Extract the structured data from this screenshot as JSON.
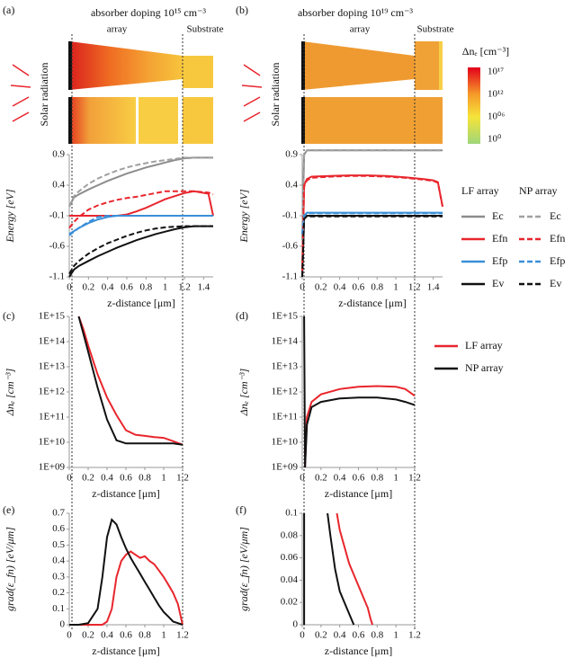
{
  "colormaps": [
    {
      "title": "absorber doping 10¹⁵ cm⁻³",
      "array_label": "array",
      "substrate_label": "Substrate",
      "side_label": "Solar radiation"
    },
    {
      "title": "absorber doping 10¹⁹ cm⁻³",
      "array_label": "array",
      "substrate_label": "Substrate",
      "side_label": "Solar radiation"
    }
  ],
  "colorbar": {
    "title": "Δnₑ [cm⁻³]",
    "labels": [
      "10¹⁷",
      "10¹²",
      "10⁰⁶",
      "10⁰"
    ]
  },
  "chart_data": [
    {
      "type": "line",
      "panel_label": "(a)",
      "xlabel": "z-distance [μm]",
      "ylabel": "Energy [eV]",
      "xlim": [
        0,
        1.5
      ],
      "xticks": [
        0,
        0.2,
        0.4,
        0.6,
        0.8,
        1,
        1.2,
        1.4
      ],
      "ylim": [
        -1.1,
        0.9
      ],
      "yticks": [
        -1.1,
        -0.6,
        -0.1,
        0.4,
        0.9
      ],
      "legend_groups": [
        "LF array",
        "NP array"
      ],
      "x": [
        0,
        0.05,
        0.1,
        0.2,
        0.3,
        0.4,
        0.5,
        0.6,
        0.7,
        0.8,
        0.9,
        1.0,
        1.1,
        1.2,
        1.3,
        1.45,
        1.5
      ],
      "series": [
        {
          "name": "Ec",
          "color": "#8c8c8c",
          "dash": false,
          "values": [
            0.05,
            0.2,
            0.25,
            0.33,
            0.4,
            0.47,
            0.53,
            0.59,
            0.64,
            0.69,
            0.73,
            0.77,
            0.81,
            0.84,
            0.85,
            0.85,
            0.85
          ]
        },
        {
          "name": "Efn",
          "color": "#e8262d",
          "dash": false,
          "values": [
            -0.1,
            -0.1,
            -0.1,
            -0.1,
            -0.1,
            -0.1,
            -0.1,
            -0.08,
            -0.03,
            0.03,
            0.1,
            0.17,
            0.22,
            0.27,
            0.3,
            0.26,
            -0.1
          ]
        },
        {
          "name": "Efp",
          "color": "#3a8fd8",
          "dash": false,
          "values": [
            -0.4,
            -0.35,
            -0.3,
            -0.22,
            -0.16,
            -0.12,
            -0.1,
            -0.1,
            -0.1,
            -0.1,
            -0.1,
            -0.1,
            -0.1,
            -0.1,
            -0.1,
            -0.1,
            -0.1
          ]
        },
        {
          "name": "Ev",
          "color": "#111111",
          "dash": false,
          "values": [
            -1.1,
            -0.98,
            -0.92,
            -0.84,
            -0.76,
            -0.69,
            -0.62,
            -0.56,
            -0.5,
            -0.45,
            -0.4,
            -0.36,
            -0.32,
            -0.29,
            -0.27,
            -0.27,
            -0.27
          ]
        },
        {
          "name": "Ec",
          "color": "#a0a0a0",
          "dash": true,
          "values": [
            0.05,
            0.22,
            0.3,
            0.42,
            0.51,
            0.58,
            0.64,
            0.69,
            0.73,
            0.76,
            0.79,
            0.81,
            0.83,
            0.85,
            0.85,
            0.85,
            0.85
          ]
        },
        {
          "name": "Efn",
          "color": "#e8262d",
          "dash": true,
          "values": [
            -0.3,
            -0.2,
            -0.12,
            0.0,
            0.07,
            0.12,
            0.16,
            0.19,
            0.21,
            0.24,
            0.27,
            0.3,
            0.3,
            0.3,
            0.3,
            0.28,
            0.25
          ]
        },
        {
          "name": "Efp",
          "color": "#3a8fd8",
          "dash": true,
          "values": [
            -0.42,
            -0.36,
            -0.3,
            -0.2,
            -0.12,
            -0.1,
            -0.1,
            -0.1,
            -0.1,
            -0.1,
            -0.1,
            -0.1,
            -0.1,
            -0.1,
            -0.1,
            -0.1,
            -0.1
          ]
        },
        {
          "name": "Ev",
          "color": "#111111",
          "dash": true,
          "values": [
            -1.05,
            -0.92,
            -0.84,
            -0.72,
            -0.63,
            -0.55,
            -0.49,
            -0.43,
            -0.38,
            -0.34,
            -0.31,
            -0.29,
            -0.28,
            -0.27,
            -0.27,
            -0.27,
            -0.27
          ]
        }
      ]
    },
    {
      "type": "line",
      "panel_label": "(b)",
      "xlabel": "z-distance [μm]",
      "ylabel": "Energy [eV]",
      "xlim": [
        0,
        1.5
      ],
      "xticks": [
        0,
        0.2,
        0.4,
        0.6,
        0.8,
        1,
        1.2,
        1.4
      ],
      "ylim": [
        -1.1,
        0.9
      ],
      "yticks": [
        -1.1,
        -0.6,
        -0.1,
        0.4,
        0.9
      ],
      "x": [
        0,
        0.02,
        0.05,
        0.1,
        0.3,
        0.5,
        0.7,
        0.9,
        1.1,
        1.3,
        1.4,
        1.45,
        1.5
      ],
      "series": [
        {
          "color": "#8c8c8c",
          "dash": false,
          "values": [
            -0.5,
            0.9,
            0.97,
            0.97,
            0.97,
            0.97,
            0.97,
            0.97,
            0.97,
            0.97,
            0.97,
            0.97,
            0.97
          ]
        },
        {
          "color": "#e8262d",
          "dash": false,
          "values": [
            -1.0,
            0.4,
            0.5,
            0.54,
            0.55,
            0.56,
            0.56,
            0.55,
            0.53,
            0.5,
            0.48,
            0.45,
            0.05
          ]
        },
        {
          "color": "#3a8fd8",
          "dash": false,
          "values": [
            -0.4,
            -0.1,
            -0.05,
            -0.05,
            -0.05,
            -0.05,
            -0.05,
            -0.05,
            -0.05,
            -0.05,
            -0.05,
            -0.05,
            -0.05
          ]
        },
        {
          "color": "#111111",
          "dash": false,
          "values": [
            -1.1,
            -0.15,
            -0.1,
            -0.1,
            -0.1,
            -0.1,
            -0.1,
            -0.1,
            -0.1,
            -0.1,
            -0.1,
            -0.1,
            -0.1
          ]
        },
        {
          "color": "#a0a0a0",
          "dash": true,
          "values": [
            -0.5,
            0.9,
            0.97,
            0.97,
            0.97,
            0.97,
            0.97,
            0.97,
            0.97,
            0.97,
            0.97,
            0.97,
            0.97
          ]
        },
        {
          "color": "#e8262d",
          "dash": true,
          "values": [
            -1.0,
            0.38,
            0.48,
            0.52,
            0.54,
            0.55,
            0.55,
            0.54,
            0.52,
            0.49,
            0.47,
            0.44,
            0.05
          ]
        },
        {
          "color": "#3a8fd8",
          "dash": true,
          "values": [
            -0.4,
            -0.1,
            -0.06,
            -0.06,
            -0.06,
            -0.06,
            -0.06,
            -0.06,
            -0.06,
            -0.06,
            -0.06,
            -0.06,
            -0.06
          ]
        },
        {
          "color": "#111111",
          "dash": true,
          "values": [
            -1.1,
            -0.15,
            -0.11,
            -0.11,
            -0.11,
            -0.11,
            -0.11,
            -0.11,
            -0.11,
            -0.11,
            -0.11,
            -0.11,
            -0.11
          ]
        }
      ]
    },
    {
      "type": "line",
      "panel_label": "(c)",
      "xlabel": "z-distance [μm]",
      "ylabel": "Δnₑ [cm⁻³]",
      "log_y": true,
      "xlim": [
        0,
        1.2
      ],
      "xticks": [
        0,
        0.2,
        0.4,
        0.6,
        0.8,
        1,
        1.2
      ],
      "ylim": [
        1000000000.0,
        1000000000000000.0
      ],
      "yticks": [
        {
          "value": 1000000000.0,
          "label": "1E+09"
        },
        {
          "value": 10000000000.0,
          "label": "1E+10"
        },
        {
          "value": 100000000000.0,
          "label": "1E+11"
        },
        {
          "value": 1000000000000.0,
          "label": "1E+12"
        },
        {
          "value": 10000000000000.0,
          "label": "1E+13"
        },
        {
          "value": 100000000000000.0,
          "label": "1E+14"
        },
        {
          "value": 1000000000000000.0,
          "label": "1E+15"
        }
      ],
      "x": [
        0.1,
        0.15,
        0.2,
        0.3,
        0.4,
        0.5,
        0.6,
        0.7,
        0.8,
        0.9,
        1.0,
        1.1,
        1.2
      ],
      "series": [
        {
          "name": "LF array",
          "color": "#e8262d",
          "dash": false,
          "values": [
            1000000000000000.0,
            300000000000000.0,
            70000000000000.0,
            5000000000000.0,
            600000000000.0,
            120000000000.0,
            30000000000.0,
            20000000000.0,
            18000000000.0,
            16000000000.0,
            15000000000.0,
            11000000000.0,
            8000000000.0
          ]
        },
        {
          "name": "NP array",
          "color": "#111111",
          "dash": false,
          "values": [
            1000000000000000.0,
            200000000000000.0,
            40000000000000.0,
            1500000000000.0,
            80000000000.0,
            12000000000.0,
            9000000000.0,
            9000000000.0,
            9000000000.0,
            9000000000.0,
            9000000000.0,
            9000000000.0,
            8000000000.0
          ]
        }
      ]
    },
    {
      "type": "line",
      "panel_label": "(d)",
      "xlabel": "z-distance [μm]",
      "ylabel": "Δnₑ [cm⁻³]",
      "log_y": true,
      "xlim": [
        0,
        1.2
      ],
      "xticks": [
        0,
        0.2,
        0.4,
        0.6,
        0.8,
        1,
        1.2
      ],
      "ylim": [
        1000000000.0,
        1000000000000000.0
      ],
      "yticks": [
        {
          "value": 1000000000.0,
          "label": "1E+09"
        },
        {
          "value": 10000000000.0,
          "label": "1E+10"
        },
        {
          "value": 100000000000.0,
          "label": "1E+11"
        },
        {
          "value": 1000000000000.0,
          "label": "1E+12"
        },
        {
          "value": 10000000000000.0,
          "label": "1E+13"
        },
        {
          "value": 100000000000000.0,
          "label": "1E+14"
        },
        {
          "value": 1000000000000000.0,
          "label": "1E+15"
        }
      ],
      "x": [
        0.02,
        0.03,
        0.05,
        0.1,
        0.2,
        0.4,
        0.6,
        0.8,
        1.0,
        1.1,
        1.2
      ],
      "series": [
        {
          "color": "#e8262d",
          "dash": false,
          "values": [
            null,
            1000000000.0,
            100000000000.0,
            400000000000.0,
            800000000000.0,
            1300000000000.0,
            1600000000000.0,
            1700000000000.0,
            1600000000000.0,
            1300000000000.0,
            700000000000.0
          ]
        },
        {
          "color": "#111111",
          "dash": false,
          "values": [
            1000000000000000.0,
            1000000000.0,
            50000000000.0,
            250000000000.0,
            400000000000.0,
            550000000000.0,
            600000000000.0,
            600000000000.0,
            500000000000.0,
            400000000000.0,
            300000000000.0
          ]
        }
      ]
    },
    {
      "type": "line",
      "panel_label": "(e)",
      "xlabel": "z-distance [μm]",
      "ylabel": "grad(ε_fn) [eV/μm]",
      "xlim": [
        0,
        1.2
      ],
      "xticks": [
        0,
        0.2,
        0.4,
        0.6,
        0.8,
        1,
        1.2
      ],
      "ylim": [
        0,
        0.7
      ],
      "yticks": [
        0,
        0.1,
        0.2,
        0.3,
        0.4,
        0.5,
        0.6,
        0.7
      ],
      "x": [
        0,
        0.1,
        0.2,
        0.3,
        0.35,
        0.4,
        0.45,
        0.5,
        0.55,
        0.6,
        0.65,
        0.7,
        0.75,
        0.8,
        0.85,
        0.9,
        0.95,
        1.0,
        1.05,
        1.1,
        1.15,
        1.2
      ],
      "series": [
        {
          "color": "#e8262d",
          "dash": false,
          "values": [
            0,
            0,
            0,
            0,
            0,
            0.02,
            0.1,
            0.3,
            0.4,
            0.44,
            0.46,
            0.44,
            0.42,
            0.43,
            0.4,
            0.38,
            0.34,
            0.3,
            0.25,
            0.2,
            0.13,
            0
          ]
        },
        {
          "color": "#111111",
          "dash": false,
          "values": [
            0,
            0,
            0.01,
            0.1,
            0.3,
            0.55,
            0.66,
            0.63,
            0.55,
            0.48,
            0.42,
            0.37,
            0.32,
            0.27,
            0.22,
            0.17,
            0.12,
            0.08,
            0.05,
            0.02,
            0.01,
            0
          ]
        }
      ]
    },
    {
      "type": "line",
      "panel_label": "(f)",
      "xlabel": "z-distance [μm]",
      "ylabel": "grad(ε_fn) [eV/μm]",
      "xlim": [
        0,
        1.2
      ],
      "xticks": [
        0,
        0.2,
        0.4,
        0.6,
        0.8,
        1,
        1.2
      ],
      "ylim": [
        0,
        0.1
      ],
      "yticks": [
        0,
        0.02,
        0.04,
        0.06,
        0.08,
        0.1
      ],
      "series": [
        {
          "color": "#111111",
          "dash": false,
          "x": [
            0.02,
            0.02
          ],
          "values": [
            0,
            0.1
          ]
        },
        {
          "color": "#111111",
          "dash": false,
          "x": [
            0.27,
            0.3,
            0.35,
            0.4,
            0.45,
            0.5,
            0.55
          ],
          "values": [
            0.1,
            0.08,
            0.05,
            0.03,
            0.02,
            0.01,
            0
          ]
        },
        {
          "color": "#e8262d",
          "dash": false,
          "x": [
            0.37,
            0.4,
            0.45,
            0.5,
            0.55,
            0.6,
            0.65,
            0.7,
            0.73,
            0.75
          ],
          "values": [
            0.1,
            0.085,
            0.07,
            0.055,
            0.045,
            0.035,
            0.025,
            0.015,
            0.005,
            0
          ]
        }
      ]
    }
  ]
}
